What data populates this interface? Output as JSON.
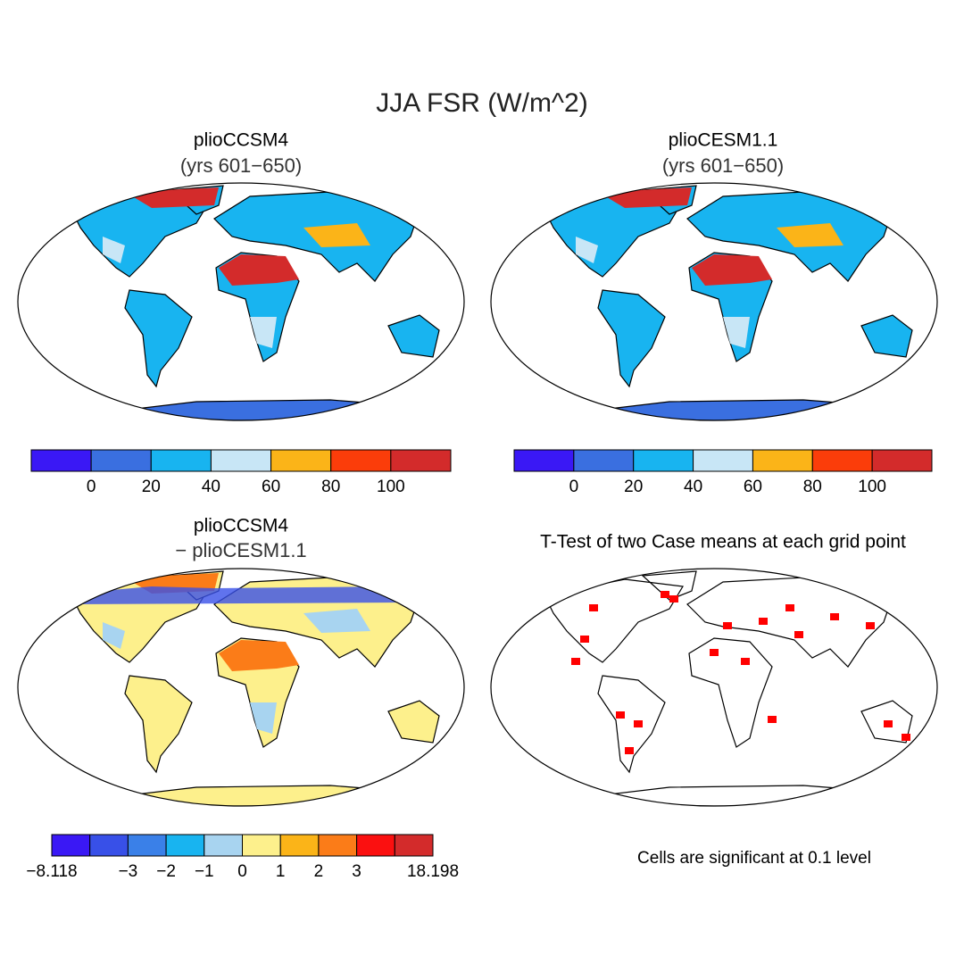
{
  "title": "JJA FSR (W/m^2)",
  "panels": [
    {
      "title": "plioCCSM4",
      "subtitle": "(yrs 601−650)"
    },
    {
      "title": "plioCESM1.1",
      "subtitle": "(yrs 601−650)"
    },
    {
      "title": "plioCCSM4",
      "subtitle": "− plioCESM1.1"
    },
    {
      "title": "T-Test of two Case means at each grid point"
    }
  ],
  "colorbars": [
    {
      "colors": [
        "#3a18f5",
        "#3a6fe0",
        "#18b4f0",
        "#c8e6f6",
        "#fbb418",
        "#fb3d0a",
        "#d32b2b"
      ],
      "labels": [
        "0",
        "20",
        "40",
        "60",
        "80",
        "100"
      ]
    },
    {
      "colors": [
        "#3a18f5",
        "#3a6fe0",
        "#18b4f0",
        "#c8e6f6",
        "#fbb418",
        "#fb3d0a",
        "#d32b2b"
      ],
      "labels": [
        "0",
        "20",
        "40",
        "60",
        "80",
        "100"
      ]
    },
    {
      "colors": [
        "#3a18f5",
        "#3850e8",
        "#3a80e8",
        "#18b4f0",
        "#a8d4f0",
        "#fdf08c",
        "#fbb418",
        "#fb7c18",
        "#fb1010",
        "#d32b2b"
      ],
      "labels": [
        "−8.118",
        "−3",
        "−2",
        "−1",
        "0",
        "1",
        "2",
        "3",
        "18.198"
      ]
    }
  ],
  "note": "Cells are significant at 0.1 level"
}
